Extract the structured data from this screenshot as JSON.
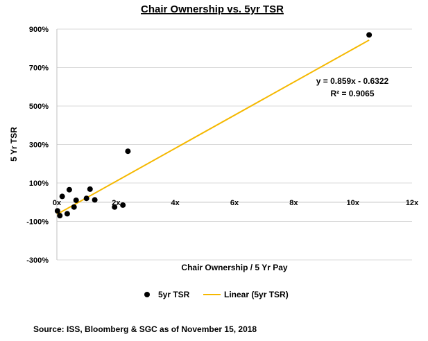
{
  "chart_data": {
    "type": "scatter",
    "title": "Chair Ownership vs. 5yr TSR",
    "xlabel": "Chair Ownership / 5 Yr Pay",
    "ylabel": "5 Yr TSR",
    "xlim": [
      0,
      12
    ],
    "ylim": [
      -3,
      9
    ],
    "x_ticks": [
      {
        "value": 0,
        "label": "0x"
      },
      {
        "value": 2,
        "label": "2x"
      },
      {
        "value": 4,
        "label": "4x"
      },
      {
        "value": 6,
        "label": "6x"
      },
      {
        "value": 8,
        "label": "8x"
      },
      {
        "value": 10,
        "label": "10x"
      },
      {
        "value": 12,
        "label": "12x"
      }
    ],
    "y_ticks": [
      {
        "value": 9,
        "label": "900%"
      },
      {
        "value": 7,
        "label": "700%"
      },
      {
        "value": 5,
        "label": "500%"
      },
      {
        "value": 3,
        "label": "300%"
      },
      {
        "value": 1,
        "label": "100%"
      },
      {
        "value": -1,
        "label": "-100%"
      },
      {
        "value": -3,
        "label": "-300%"
      }
    ],
    "grid": {
      "horizontal": true,
      "vertical": false
    },
    "series": [
      {
        "name": "5yr TSR",
        "color": "#000000",
        "points": [
          {
            "x": 0.02,
            "y": -0.45
          },
          {
            "x": 0.1,
            "y": -0.7
          },
          {
            "x": 0.18,
            "y": 0.3
          },
          {
            "x": 0.35,
            "y": -0.6
          },
          {
            "x": 0.42,
            "y": 0.65
          },
          {
            "x": 0.58,
            "y": -0.25
          },
          {
            "x": 0.65,
            "y": 0.1
          },
          {
            "x": 1.0,
            "y": 0.2
          },
          {
            "x": 1.12,
            "y": 0.68
          },
          {
            "x": 1.28,
            "y": 0.12
          },
          {
            "x": 1.95,
            "y": -0.25
          },
          {
            "x": 2.23,
            "y": -0.15
          },
          {
            "x": 2.4,
            "y": 2.65
          },
          {
            "x": 10.55,
            "y": 8.7
          }
        ]
      }
    ],
    "trendline": {
      "name": "Linear (5yr TSR)",
      "color": "#F5B800",
      "slope": 0.859,
      "intercept": -0.6322,
      "x_range": [
        0,
        10.55
      ],
      "equation_label": "y = 0.859x - 0.6322",
      "r2_label": "R² = 0.9065"
    },
    "legend": {
      "position": "bottom"
    }
  },
  "source_note": "Source: ISS, Bloomberg & SGC as of November 15, 2018"
}
